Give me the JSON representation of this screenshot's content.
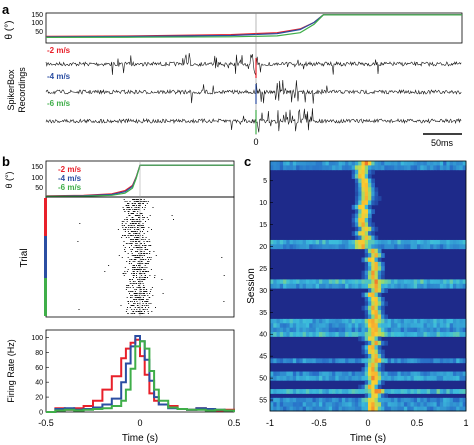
{
  "panels": {
    "a": {
      "letter": "a"
    },
    "b": {
      "letter": "b"
    },
    "c": {
      "letter": "c"
    }
  },
  "colors": {
    "red": "#e8202a",
    "blue": "#2b4ea2",
    "green": "#3fae49",
    "black": "#111111"
  },
  "chart_data": [
    {
      "id": "a-theta",
      "type": "line",
      "ylabel": "θ (°)",
      "yticks": [
        50,
        100,
        150
      ],
      "ylim": [
        0,
        160
      ],
      "x_unit": "ms",
      "xlim": [
        -600,
        300
      ],
      "series": [
        {
          "name": "-2 m/s",
          "color": "#e8202a",
          "x": [
            -600,
            -400,
            -200,
            -100,
            -50,
            -20,
            0,
            300
          ],
          "y": [
            35,
            38,
            45,
            55,
            75,
            110,
            150,
            150
          ]
        },
        {
          "name": "-4 m/s",
          "color": "#2b4ea2",
          "x": [
            -600,
            -400,
            -200,
            -100,
            -50,
            -20,
            0,
            300
          ],
          "y": [
            33,
            35,
            40,
            50,
            72,
            110,
            150,
            150
          ]
        },
        {
          "name": "-6 m/s",
          "color": "#3fae49",
          "x": [
            -600,
            -400,
            -200,
            -100,
            -50,
            -20,
            0,
            300
          ],
          "y": [
            30,
            31,
            33,
            38,
            55,
            100,
            150,
            150
          ]
        }
      ]
    },
    {
      "id": "a-recordings",
      "type": "line",
      "ylabel": "SpikerBox Recordings",
      "traces": [
        "-2 m/s",
        "-4 m/s",
        "-6 m/s"
      ],
      "xtick": "0",
      "scalebar": "50ms"
    },
    {
      "id": "b-theta",
      "type": "line",
      "ylabel": "θ (°)",
      "yticks": [
        50,
        100,
        150
      ],
      "ylim": [
        0,
        170
      ],
      "xlim": [
        -0.5,
        0.5
      ],
      "legend": [
        "-2 m/s",
        "-4 m/s",
        "-6 m/s"
      ],
      "legend_position": "top-left",
      "series": [
        {
          "name": "-2 m/s",
          "color": "#e8202a",
          "x": [
            -0.5,
            -0.3,
            -0.15,
            -0.08,
            -0.04,
            -0.02,
            0,
            0.5
          ],
          "y": [
            5,
            8,
            15,
            30,
            55,
            95,
            150,
            150
          ]
        },
        {
          "name": "-4 m/s",
          "color": "#2b4ea2",
          "x": [
            -0.5,
            -0.3,
            -0.15,
            -0.08,
            -0.04,
            -0.02,
            0,
            0.5
          ],
          "y": [
            4,
            6,
            12,
            25,
            50,
            92,
            150,
            150
          ]
        },
        {
          "name": "-6 m/s",
          "color": "#3fae49",
          "x": [
            -0.5,
            -0.3,
            -0.15,
            -0.08,
            -0.04,
            -0.02,
            0,
            0.5
          ],
          "y": [
            3,
            4,
            8,
            18,
            42,
            88,
            150,
            150
          ]
        }
      ]
    },
    {
      "id": "b-raster",
      "type": "scatter",
      "ylabel": "Trial",
      "xlim": [
        -0.5,
        0.5
      ]
    },
    {
      "id": "b-rate",
      "type": "line",
      "ylabel": "Firing Rate (Hz)",
      "xlabel": "Time (s)",
      "xlim": [
        -0.5,
        0.5
      ],
      "ylim": [
        0,
        110
      ],
      "xticks": [
        -0.5,
        0,
        0.5
      ],
      "yticks": [
        0,
        20,
        40,
        60,
        80,
        100
      ],
      "series": [
        {
          "name": "-2 m/s",
          "color": "#e8202a",
          "x": [
            -0.5,
            -0.45,
            -0.4,
            -0.35,
            -0.3,
            -0.25,
            -0.2,
            -0.15,
            -0.1,
            -0.075,
            -0.05,
            -0.025,
            0,
            0.025,
            0.05,
            0.075,
            0.1,
            0.15,
            0.2,
            0.25,
            0.3,
            0.35,
            0.4,
            0.45,
            0.5
          ],
          "y": [
            0,
            5,
            3,
            5,
            8,
            15,
            30,
            48,
            72,
            85,
            93,
            97,
            75,
            50,
            25,
            15,
            10,
            8,
            4,
            3,
            5,
            3,
            2,
            3,
            0
          ]
        },
        {
          "name": "-4 m/s",
          "color": "#2b4ea2",
          "x": [
            -0.5,
            -0.45,
            -0.4,
            -0.35,
            -0.3,
            -0.25,
            -0.2,
            -0.15,
            -0.1,
            -0.075,
            -0.05,
            -0.025,
            0,
            0.025,
            0.05,
            0.075,
            0.1,
            0.15,
            0.2,
            0.25,
            0.3,
            0.35,
            0.4,
            0.45,
            0.5
          ],
          "y": [
            0,
            4,
            5,
            3,
            4,
            6,
            10,
            18,
            40,
            65,
            88,
            102,
            95,
            70,
            42,
            20,
            10,
            5,
            4,
            3,
            5,
            4,
            3,
            2,
            0
          ]
        },
        {
          "name": "-6 m/s",
          "color": "#3fae49",
          "x": [
            -0.5,
            -0.45,
            -0.4,
            -0.35,
            -0.3,
            -0.25,
            -0.2,
            -0.15,
            -0.1,
            -0.075,
            -0.05,
            -0.025,
            0,
            0.025,
            0.05,
            0.075,
            0.1,
            0.15,
            0.2,
            0.25,
            0.3,
            0.35,
            0.4,
            0.45,
            0.5
          ],
          "y": [
            0,
            2,
            3,
            2,
            3,
            4,
            5,
            8,
            15,
            30,
            58,
            88,
            95,
            85,
            55,
            30,
            15,
            6,
            4,
            3,
            3,
            2,
            3,
            2,
            0
          ]
        }
      ]
    },
    {
      "id": "c-heatmap",
      "type": "heatmap",
      "ylabel": "Session",
      "xlabel": "Time (s)",
      "xlim": [
        -1,
        1
      ],
      "xticks": [
        -1,
        -0.5,
        0,
        0.5,
        1
      ],
      "xtick_labels": [
        "-1",
        "-0.5",
        "0",
        "0.5",
        "1"
      ],
      "yticks": [
        5,
        10,
        15,
        20,
        25,
        30,
        35,
        40,
        45,
        50,
        55
      ],
      "rows": 57
    }
  ]
}
